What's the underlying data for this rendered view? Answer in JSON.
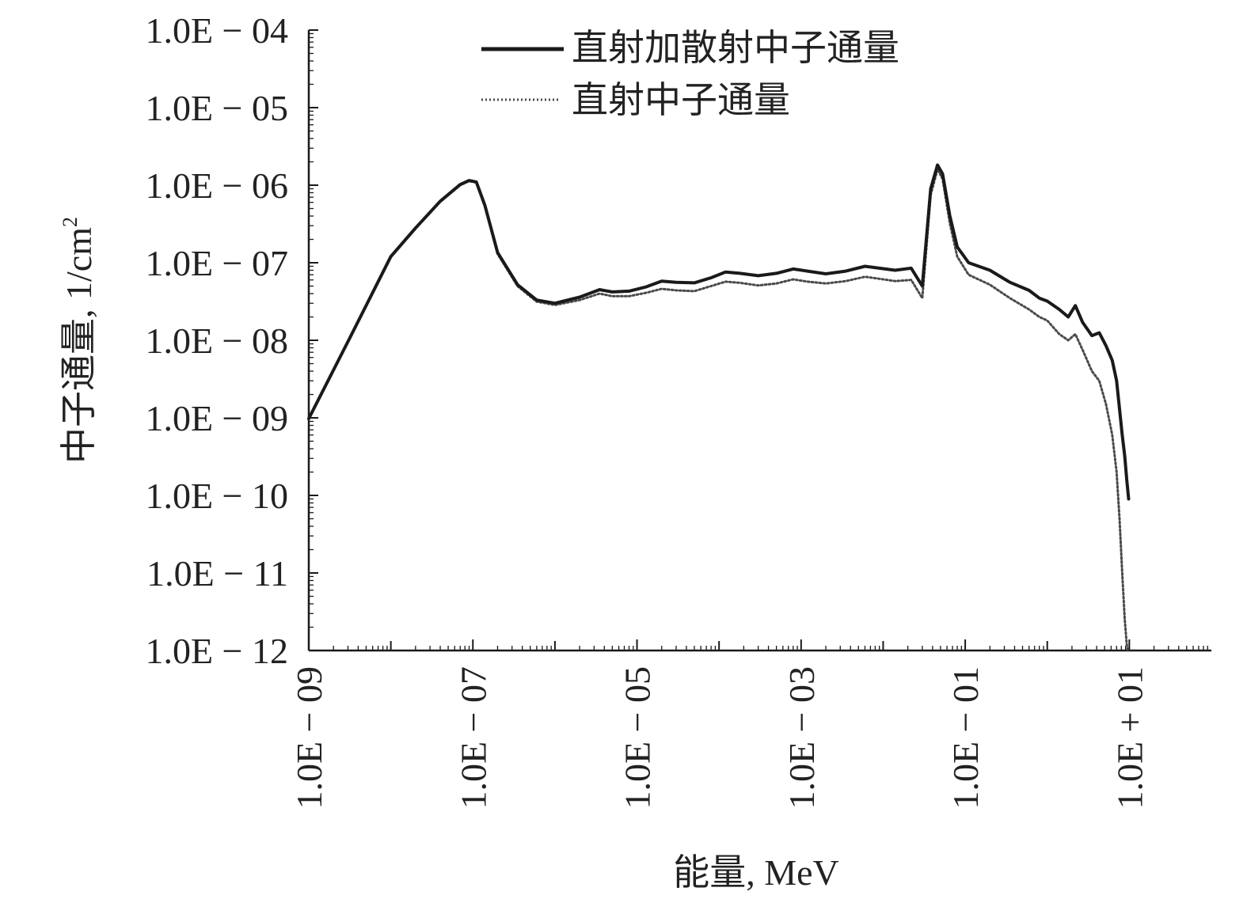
{
  "chart_data": {
    "type": "line",
    "xscale": "log",
    "yscale": "log",
    "xlim": [
      1e-09,
      100
    ],
    "ylim": [
      1e-12,
      0.0001
    ],
    "xlabel": "能量, MeV",
    "ylabel_main": "中子通量, 1/cm",
    "ylabel_sup": "2",
    "legend_position": "top-center",
    "grid": false,
    "x_ticks": [
      {
        "value": 1e-09,
        "label": "1.0E − 09"
      },
      {
        "value": 1e-07,
        "label": "1.0E − 07"
      },
      {
        "value": 1e-05,
        "label": "1.0E − 05"
      },
      {
        "value": 0.001,
        "label": "1.0E − 03"
      },
      {
        "value": 0.1,
        "label": "1.0E − 01"
      },
      {
        "value": 10,
        "label": "1.0E + 01"
      }
    ],
    "y_ticks": [
      {
        "value": 0.0001,
        "label": "1.0E − 04"
      },
      {
        "value": 1e-05,
        "label": "1.0E − 05"
      },
      {
        "value": 1e-06,
        "label": "1.0E − 06"
      },
      {
        "value": 1e-07,
        "label": "1.0E − 07"
      },
      {
        "value": 1e-08,
        "label": "1.0E − 08"
      },
      {
        "value": 1e-09,
        "label": "1.0E − 09"
      },
      {
        "value": 1e-10,
        "label": "1.0E − 10"
      },
      {
        "value": 1e-11,
        "label": "1.0E − 11"
      },
      {
        "value": 1e-12,
        "label": "1.0E − 12"
      }
    ],
    "series": [
      {
        "name": "直射加散射中子通量",
        "style": "solid",
        "color": "#1a1a1a",
        "points": [
          [
            1e-09,
            9.8e-10
          ],
          [
            3.2e-09,
            1.1e-08
          ],
          [
            1e-08,
            1.2e-07
          ],
          [
            2e-08,
            2.8e-07
          ],
          [
            4e-08,
            6.2e-07
          ],
          [
            7e-08,
            1.02e-06
          ],
          [
            9e-08,
            1.15e-06
          ],
          [
            1.1e-07,
            1.1e-06
          ],
          [
            1.4e-07,
            5.5e-07
          ],
          [
            2e-07,
            1.35e-07
          ],
          [
            3.5e-07,
            5.2e-08
          ],
          [
            6e-07,
            3.3e-08
          ],
          [
            1e-06,
            3e-08
          ],
          [
            2e-06,
            3.6e-08
          ],
          [
            3.5e-06,
            4.5e-08
          ],
          [
            5e-06,
            4.2e-08
          ],
          [
            8e-06,
            4.3e-08
          ],
          [
            1.3e-05,
            4.9e-08
          ],
          [
            2e-05,
            5.8e-08
          ],
          [
            3e-05,
            5.6e-08
          ],
          [
            5e-05,
            5.5e-08
          ],
          [
            8e-05,
            6.4e-08
          ],
          [
            0.00012,
            7.6e-08
          ],
          [
            0.00018,
            7.3e-08
          ],
          [
            0.0003,
            6.8e-08
          ],
          [
            0.0005,
            7.3e-08
          ],
          [
            0.0008,
            8.3e-08
          ],
          [
            0.0012,
            7.8e-08
          ],
          [
            0.002,
            7.2e-08
          ],
          [
            0.0035,
            7.8e-08
          ],
          [
            0.006,
            9e-08
          ],
          [
            0.009,
            8.5e-08
          ],
          [
            0.014,
            8e-08
          ],
          [
            0.022,
            8.5e-08
          ],
          [
            0.03,
            5e-08
          ],
          [
            0.038,
            9e-07
          ],
          [
            0.046,
            1.82e-06
          ],
          [
            0.053,
            1.4e-06
          ],
          [
            0.065,
            4e-07
          ],
          [
            0.08,
            1.6e-07
          ],
          [
            0.11,
            1e-07
          ],
          [
            0.2,
            8e-08
          ],
          [
            0.35,
            5.6e-08
          ],
          [
            0.6,
            4.4e-08
          ],
          [
            0.8,
            3.5e-08
          ],
          [
            1.0,
            3.2e-08
          ],
          [
            1.4,
            2.5e-08
          ],
          [
            1.8,
            2e-08
          ],
          [
            2.2,
            2.8e-08
          ],
          [
            2.7,
            1.7e-08
          ],
          [
            3.5,
            1.15e-08
          ],
          [
            4.3,
            1.25e-08
          ],
          [
            5.2,
            8.5e-09
          ],
          [
            6.2,
            5.5e-09
          ],
          [
            7.0,
            3e-09
          ],
          [
            7.6,
            1.3e-09
          ],
          [
            8.2,
            6e-10
          ],
          [
            8.8,
            3.2e-10
          ],
          [
            9.3,
            1.6e-10
          ],
          [
            9.8,
            9e-11
          ]
        ]
      },
      {
        "name": "直射中子通量",
        "style": "dotted",
        "color": "#4a4a4a",
        "points": [
          [
            1e-09,
            9.6e-10
          ],
          [
            3.2e-09,
            1.08e-08
          ],
          [
            1e-08,
            1.18e-07
          ],
          [
            2e-08,
            2.75e-07
          ],
          [
            4e-08,
            6.1e-07
          ],
          [
            7e-08,
            1e-06
          ],
          [
            9e-08,
            1.13e-06
          ],
          [
            1.1e-07,
            1.08e-06
          ],
          [
            1.4e-07,
            5.3e-07
          ],
          [
            2e-07,
            1.3e-07
          ],
          [
            3.5e-07,
            5e-08
          ],
          [
            6e-07,
            3.15e-08
          ],
          [
            1e-06,
            2.85e-08
          ],
          [
            2e-06,
            3.3e-08
          ],
          [
            3.5e-06,
            4e-08
          ],
          [
            5e-06,
            3.7e-08
          ],
          [
            8e-06,
            3.7e-08
          ],
          [
            1.3e-05,
            4.1e-08
          ],
          [
            2e-05,
            4.6e-08
          ],
          [
            3e-05,
            4.4e-08
          ],
          [
            5e-05,
            4.3e-08
          ],
          [
            8e-05,
            5e-08
          ],
          [
            0.00012,
            5.7e-08
          ],
          [
            0.00018,
            5.5e-08
          ],
          [
            0.0003,
            5.1e-08
          ],
          [
            0.0005,
            5.4e-08
          ],
          [
            0.0008,
            6.1e-08
          ],
          [
            0.0012,
            5.7e-08
          ],
          [
            0.002,
            5.4e-08
          ],
          [
            0.0035,
            5.8e-08
          ],
          [
            0.006,
            6.6e-08
          ],
          [
            0.009,
            6.2e-08
          ],
          [
            0.014,
            5.8e-08
          ],
          [
            0.022,
            6e-08
          ],
          [
            0.03,
            3.5e-08
          ],
          [
            0.038,
            7.5e-07
          ],
          [
            0.046,
            1.6e-06
          ],
          [
            0.053,
            1.2e-06
          ],
          [
            0.065,
            3.2e-07
          ],
          [
            0.08,
            1.2e-07
          ],
          [
            0.11,
            7e-08
          ],
          [
            0.2,
            5.2e-08
          ],
          [
            0.35,
            3.5e-08
          ],
          [
            0.6,
            2.5e-08
          ],
          [
            0.8,
            2e-08
          ],
          [
            1.0,
            1.8e-08
          ],
          [
            1.4,
            1.2e-08
          ],
          [
            1.8,
            1e-08
          ],
          [
            2.2,
            1.2e-08
          ],
          [
            2.7,
            7.5e-09
          ],
          [
            3.5,
            4e-09
          ],
          [
            4.3,
            3e-09
          ],
          [
            5.2,
            1.5e-09
          ],
          [
            6.2,
            6e-10
          ],
          [
            7.0,
            2e-10
          ],
          [
            7.6,
            5e-11
          ],
          [
            8.2,
            1e-11
          ],
          [
            8.8,
            2.5e-12
          ],
          [
            9.3,
            1.2e-12
          ],
          [
            9.6,
            1e-12
          ]
        ]
      }
    ]
  }
}
